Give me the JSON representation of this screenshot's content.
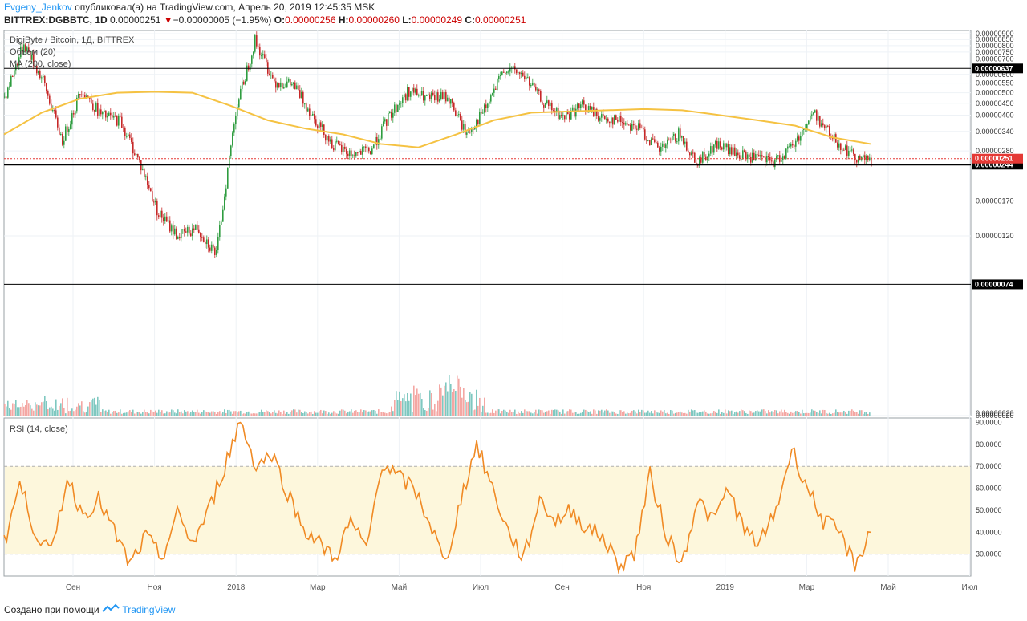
{
  "header": {
    "author": "Evgeny_Jenkov",
    "published_text": "опубликовал(а) на TradingView.com, Апрель 20, 2019 12:45:35 MSK",
    "symbol": "BITTREX:DGBBTC, 1D",
    "last_price": "0.00000251",
    "change_arrow": "▼",
    "change": "−0.00000005 (−1.95%)",
    "o_label": "O:",
    "o_value": "0.00000256",
    "h_label": "H:",
    "h_value": "0.00000260",
    "l_label": "L:",
    "l_value": "0.00000249",
    "c_label": "C:",
    "c_value": "0.00000251"
  },
  "legend": {
    "title": "DigiByte / Bitcoin, 1Д, BITTREX",
    "volume": "Объём (20)",
    "ma": "MA (200, close)",
    "rsi": "RSI (14, close)"
  },
  "footer": {
    "created_text": "Создано при помощи",
    "brand": "TradingView"
  },
  "colors": {
    "up": "#26a69a",
    "down": "#ef5350",
    "candle_up": "#2e9c3f",
    "candle_down": "#c62828",
    "ma": "#f5c242",
    "rsi": "#f08a24",
    "rsi_band": "#fdf7dc",
    "price_tag": "#e53935",
    "level_tag": "#000000",
    "brand": "#2196f3"
  },
  "chart_data": [
    {
      "type": "candlestick",
      "title": "DigiByte / Bitcoin, 1Д, BITTREX",
      "ylim": [
        2e-07,
        9.3e-06
      ],
      "y_ticks": [
        "0.00000900",
        "0.00000850",
        "0.00000800",
        "0.00000750",
        "0.00000700",
        "0.00000600",
        "0.00000550",
        "0.00000500",
        "0.00000450",
        "0.00000400",
        "0.00000340",
        "0.00000280",
        "0.00000170",
        "0.00000120",
        "0.00000020"
      ],
      "x_ticks": [
        "Сен",
        "Ноя",
        "2018",
        "Мар",
        "Май",
        "Июл",
        "Сен",
        "Ноя",
        "2019",
        "Мар",
        "Май",
        "Июл"
      ],
      "horizontal_levels": [
        {
          "label": "0.00000637",
          "value": 6.37e-06
        },
        {
          "label": "0.00000244",
          "value": 2.44e-06
        },
        {
          "label": "0.00000074",
          "value": 7.4e-07
        }
      ],
      "last_price_label": "0.00000251",
      "close_path": [
        [
          "Jul",
          4.8e-06
        ],
        [
          "Jul",
          8.2e-06
        ],
        [
          "Aug",
          5.6e-06
        ],
        [
          "Aug",
          3.1e-06
        ],
        [
          "Aug",
          5.2e-06
        ],
        [
          "Sep",
          4e-06
        ],
        [
          "Sep",
          3.8e-06
        ],
        [
          "Oct",
          2.5e-06
        ],
        [
          "Nov",
          1.5e-06
        ],
        [
          "Nov",
          1.2e-06
        ],
        [
          "Dec",
          1.3e-06
        ],
        [
          "Dec",
          1e-06
        ],
        [
          "Dec",
          4.2e-06
        ],
        [
          "Jan",
          8.4e-06
        ],
        [
          "Jan",
          5.6e-06
        ],
        [
          "Feb",
          5.4e-06
        ],
        [
          "Feb",
          4e-06
        ],
        [
          "Mar",
          3e-06
        ],
        [
          "Mar",
          2.7e-06
        ],
        [
          "Apr",
          2.8e-06
        ],
        [
          "Apr",
          4e-06
        ],
        [
          "May",
          5.1e-06
        ],
        [
          "May",
          4.7e-06
        ],
        [
          "Jun",
          4.8e-06
        ],
        [
          "Jun",
          3.3e-06
        ],
        [
          "Jun",
          4.3e-06
        ],
        [
          "Jul",
          6.4e-06
        ],
        [
          "Jul",
          5.9e-06
        ],
        [
          "Aug",
          4.5e-06
        ],
        [
          "Aug",
          3.9e-06
        ],
        [
          "Sep",
          4.4e-06
        ],
        [
          "Sep",
          3.9e-06
        ],
        [
          "Oct",
          3.8e-06
        ],
        [
          "Oct",
          3.5e-06
        ],
        [
          "Nov",
          2.8e-06
        ],
        [
          "Nov",
          3.3e-06
        ],
        [
          "Dec",
          2.5e-06
        ],
        [
          "Dec",
          3e-06
        ],
        [
          "Jan",
          2.7e-06
        ],
        [
          "Jan",
          2.6e-06
        ],
        [
          "Feb",
          2.5e-06
        ],
        [
          "Feb",
          3e-06
        ],
        [
          "Mar",
          4.1e-06
        ],
        [
          "Mar",
          3.2e-06
        ],
        [
          "Apr",
          2.7e-06
        ],
        [
          "Apr",
          2.51e-06
        ]
      ]
    },
    {
      "type": "line",
      "name": "MA (200, close)",
      "points": [
        [
          "Jul",
          3.3e-06
        ],
        [
          "Aug",
          4.1e-06
        ],
        [
          "Sep",
          4.7e-06
        ],
        [
          "Oct",
          5e-06
        ],
        [
          "Nov",
          5.05e-06
        ],
        [
          "Dec",
          5e-06
        ],
        [
          "Dec",
          4.4e-06
        ],
        [
          "Jan",
          3.8e-06
        ],
        [
          "Feb",
          3.5e-06
        ],
        [
          "Mar",
          3.3e-06
        ],
        [
          "Apr",
          3e-06
        ],
        [
          "Apr",
          2.9e-06
        ],
        [
          "May",
          3.3e-06
        ],
        [
          "Jun",
          3.8e-06
        ],
        [
          "Jul",
          4.1e-06
        ],
        [
          "Aug",
          4.15e-06
        ],
        [
          "Sep",
          4.2e-06
        ],
        [
          "Oct",
          4.25e-06
        ],
        [
          "Nov",
          4.2e-06
        ],
        [
          "Dec",
          4e-06
        ],
        [
          "Jan",
          3.8e-06
        ],
        [
          "Feb",
          3.6e-06
        ],
        [
          "Mar",
          3.2e-06
        ],
        [
          "Apr",
          3e-06
        ]
      ]
    },
    {
      "type": "bar",
      "name": "Объём (20)",
      "y_tick": "0.00000020",
      "spikes": [
        [
          "Jul",
          0.5
        ],
        [
          "Aug",
          0.4
        ],
        [
          "Dec",
          0.35
        ],
        [
          "Jan",
          1.0
        ],
        [
          "Jan",
          0.6
        ],
        [
          "Apr",
          0.15
        ],
        [
          "Jun",
          0.2
        ],
        [
          "Mar",
          0.15
        ]
      ]
    },
    {
      "type": "line",
      "name": "RSI (14, close)",
      "ylim": [
        20,
        92
      ],
      "y_ticks": [
        "90.0000",
        "80.0000",
        "70.0000",
        "60.0000",
        "50.0000",
        "40.0000",
        "30.0000"
      ],
      "band": [
        30,
        70
      ],
      "points": [
        [
          "Jul",
          35
        ],
        [
          "Jul",
          62
        ],
        [
          "Aug",
          40
        ],
        [
          "Aug",
          30
        ],
        [
          "Aug",
          65
        ],
        [
          "Sep",
          48
        ],
        [
          "Sep",
          55
        ],
        [
          "Oct",
          40
        ],
        [
          "Oct",
          25
        ],
        [
          "Nov",
          38
        ],
        [
          "Nov",
          28
        ],
        [
          "Nov",
          48
        ],
        [
          "Dec",
          35
        ],
        [
          "Dec",
          50
        ],
        [
          "Dec",
          70
        ],
        [
          "Jan",
          91
        ],
        [
          "Jan",
          70
        ],
        [
          "Jan",
          76
        ],
        [
          "Feb",
          58
        ],
        [
          "Feb",
          42
        ],
        [
          "Mar",
          35
        ],
        [
          "Mar",
          28
        ],
        [
          "Apr",
          45
        ],
        [
          "Apr",
          32
        ],
        [
          "Apr",
          72
        ],
        [
          "May",
          65
        ],
        [
          "May",
          60
        ],
        [
          "Jun",
          45
        ],
        [
          "Jun",
          25
        ],
        [
          "Jun",
          55
        ],
        [
          "Jul",
          80
        ],
        [
          "Jul",
          60
        ],
        [
          "Aug",
          40
        ],
        [
          "Aug",
          28
        ],
        [
          "Aug",
          55
        ],
        [
          "Sep",
          45
        ],
        [
          "Sep",
          50
        ],
        [
          "Oct",
          42
        ],
        [
          "Oct",
          38
        ],
        [
          "Nov",
          25
        ],
        [
          "Nov",
          30
        ],
        [
          "Nov",
          66
        ],
        [
          "Dec",
          40
        ],
        [
          "Dec",
          25
        ],
        [
          "Dec",
          55
        ],
        [
          "Jan",
          45
        ],
        [
          "Jan",
          60
        ],
        [
          "Jan",
          40
        ],
        [
          "Feb",
          35
        ],
        [
          "Feb",
          50
        ],
        [
          "Mar",
          78
        ],
        [
          "Mar",
          60
        ],
        [
          "Mar",
          45
        ],
        [
          "Apr",
          40
        ],
        [
          "Apr",
          25
        ],
        [
          "Apr",
          40
        ]
      ]
    }
  ]
}
